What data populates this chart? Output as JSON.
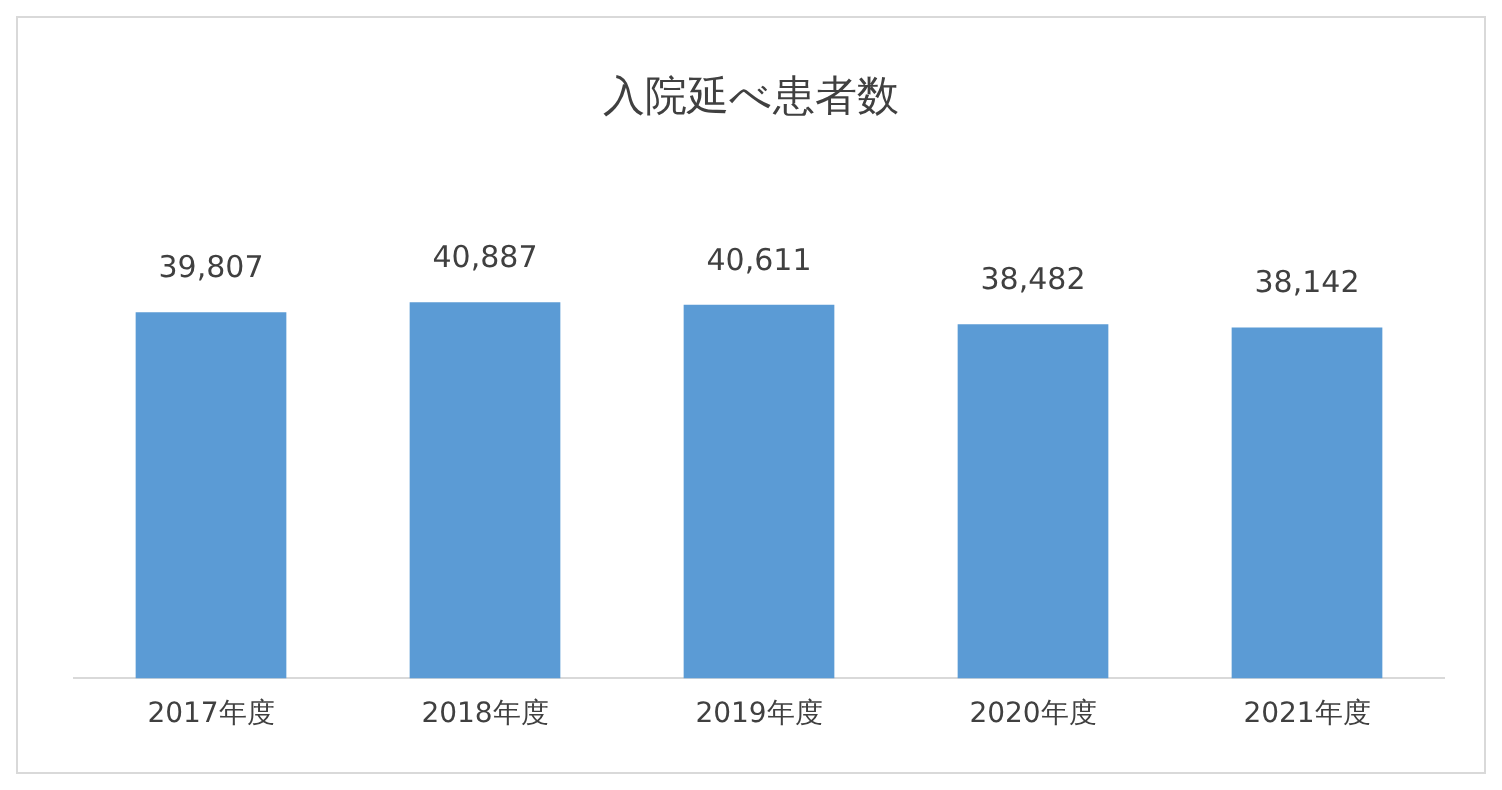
{
  "chart_data": {
    "type": "bar",
    "title": "入院延べ患者数",
    "categories": [
      "2017年度",
      "2018年度",
      "2019年度",
      "2020年度",
      "2021年度"
    ],
    "values": [
      39807,
      40887,
      40611,
      38482,
      38142
    ],
    "value_labels": [
      "39,807",
      "40,887",
      "40,611",
      "38,482",
      "38,142"
    ],
    "color": "#5b9bd5",
    "grid": false,
    "legend": false
  }
}
